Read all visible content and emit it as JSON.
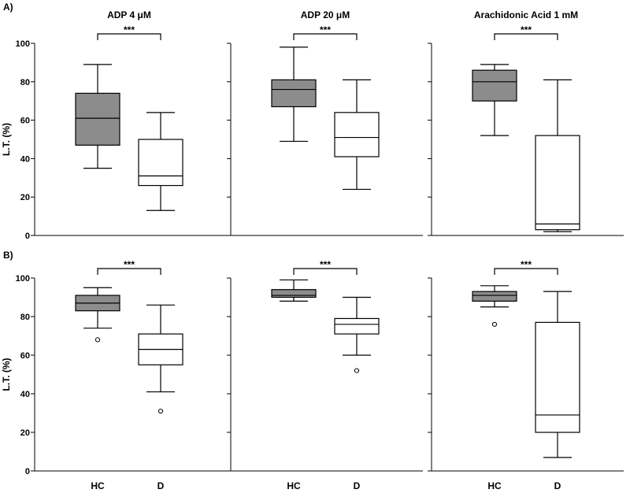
{
  "chart_data": {
    "type": "box",
    "rows": [
      {
        "label": "A)"
      },
      {
        "label": "B)"
      }
    ],
    "columns": [
      {
        "title": "ADP 4 μM"
      },
      {
        "title": "ADP 20 μM"
      },
      {
        "title": "Arachidonic Acid 1 mM"
      }
    ],
    "ylabel": "L.T. (%)",
    "ylim": [
      0,
      100
    ],
    "yticks": [
      "0",
      "20",
      "40",
      "60",
      "80",
      "100"
    ],
    "categories": [
      "HC",
      "D"
    ],
    "significance": "***",
    "colors": {
      "HC": "#8c8c8c",
      "D": "#ffffff"
    },
    "panels": [
      {
        "row": 0,
        "col": 0,
        "boxes": [
          {
            "group": "HC",
            "whisker_low": 35,
            "q1": 47,
            "median": 61,
            "q3": 74,
            "whisker_high": 89,
            "outliers": []
          },
          {
            "group": "D",
            "whisker_low": 13,
            "q1": 26,
            "median": 31,
            "q3": 50,
            "whisker_high": 64,
            "outliers": []
          }
        ]
      },
      {
        "row": 0,
        "col": 1,
        "boxes": [
          {
            "group": "HC",
            "whisker_low": 49,
            "q1": 67,
            "median": 76,
            "q3": 81,
            "whisker_high": 98,
            "outliers": []
          },
          {
            "group": "D",
            "whisker_low": 24,
            "q1": 41,
            "median": 51,
            "q3": 64,
            "whisker_high": 81,
            "outliers": []
          }
        ]
      },
      {
        "row": 0,
        "col": 2,
        "boxes": [
          {
            "group": "HC",
            "whisker_low": 52,
            "q1": 70,
            "median": 80,
            "q3": 86,
            "whisker_high": 89,
            "outliers": []
          },
          {
            "group": "D",
            "whisker_low": 2,
            "q1": 3,
            "median": 6,
            "q3": 52,
            "whisker_high": 81,
            "outliers": []
          }
        ]
      },
      {
        "row": 1,
        "col": 0,
        "boxes": [
          {
            "group": "HC",
            "whisker_low": 74,
            "q1": 83,
            "median": 87,
            "q3": 91,
            "whisker_high": 95,
            "outliers": [
              68
            ]
          },
          {
            "group": "D",
            "whisker_low": 41,
            "q1": 55,
            "median": 63,
            "q3": 71,
            "whisker_high": 86,
            "outliers": [
              31
            ]
          }
        ]
      },
      {
        "row": 1,
        "col": 1,
        "boxes": [
          {
            "group": "HC",
            "whisker_low": 88,
            "q1": 90,
            "median": 91,
            "q3": 94,
            "whisker_high": 99,
            "outliers": []
          },
          {
            "group": "D",
            "whisker_low": 60,
            "q1": 71,
            "median": 76,
            "q3": 79,
            "whisker_high": 90,
            "outliers": [
              52
            ]
          }
        ]
      },
      {
        "row": 1,
        "col": 2,
        "boxes": [
          {
            "group": "HC",
            "whisker_low": 85,
            "q1": 88,
            "median": 91,
            "q3": 93,
            "whisker_high": 96,
            "outliers": [
              76
            ]
          },
          {
            "group": "D",
            "whisker_low": 7,
            "q1": 20,
            "median": 29,
            "q3": 77,
            "whisker_high": 93,
            "outliers": []
          }
        ]
      }
    ]
  }
}
